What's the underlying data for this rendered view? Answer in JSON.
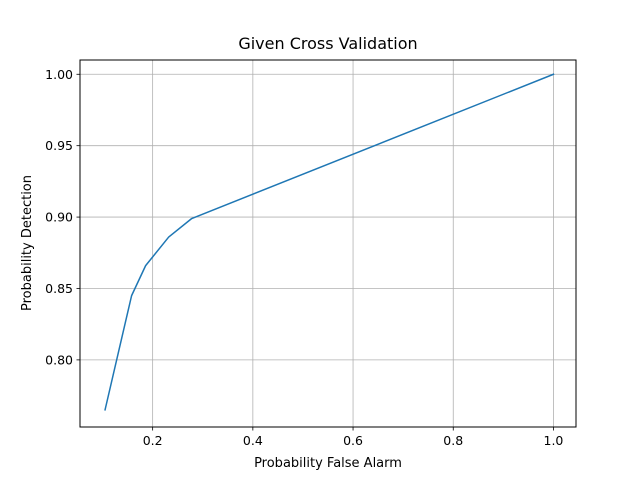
{
  "chart_data": {
    "type": "line",
    "title": "Given Cross Validation",
    "xlabel": "Probability False Alarm",
    "ylabel": "Probability Detection",
    "xlim": [
      0.055,
      1.045
    ],
    "ylim": [
      0.753,
      1.01
    ],
    "xticks": [
      0.2,
      0.4,
      0.6,
      0.8,
      1.0
    ],
    "xtick_labels": [
      "0.2",
      "0.4",
      "0.6",
      "0.8",
      "1.0"
    ],
    "yticks": [
      0.8,
      0.85,
      0.9,
      0.95,
      1.0
    ],
    "ytick_labels": [
      "0.80",
      "0.85",
      "0.90",
      "0.95",
      "1.00"
    ],
    "grid": true,
    "series": [
      {
        "color": "#1f77b4",
        "x": [
          0.105,
          0.158,
          0.186,
          0.232,
          0.278,
          1.0
        ],
        "y": [
          0.765,
          0.845,
          0.866,
          0.886,
          0.899,
          1.0
        ]
      }
    ]
  }
}
